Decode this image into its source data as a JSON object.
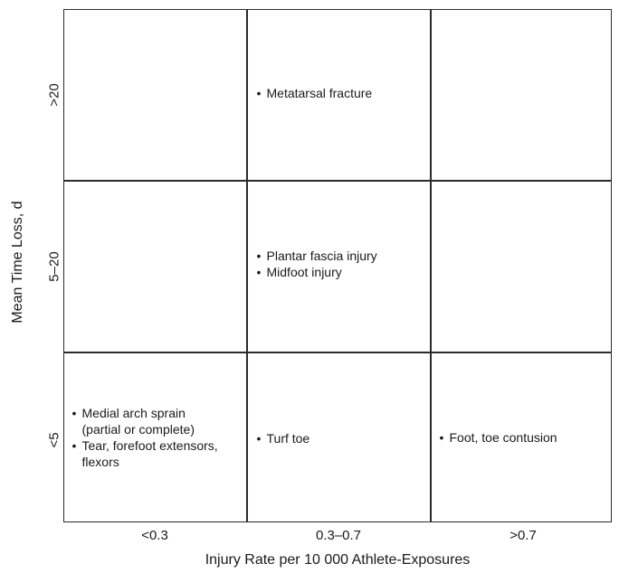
{
  "axes": {
    "x_title": "Injury Rate per 10 000 Athlete-Exposures",
    "y_title": "Mean Time Loss, d",
    "columns": [
      "<0.3",
      "0.3–0.7",
      ">0.7"
    ],
    "rows": [
      ">20",
      "5–20",
      "<5"
    ]
  },
  "cells": {
    "top_left": [],
    "top_middle": [
      "Metatarsal fracture"
    ],
    "top_right": [],
    "middle_left": [],
    "middle_middle": [
      "Plantar fascia injury",
      "Midfoot injury"
    ],
    "middle_right": [],
    "bottom_left": [
      {
        "line1": "Medial arch sprain",
        "line2": "(partial or complete)"
      },
      {
        "line1": "Tear, forefoot extensors,",
        "line2": "flexors"
      }
    ],
    "bottom_middle": [
      "Turf toe"
    ],
    "bottom_right": [
      "Foot, toe contusion"
    ]
  }
}
